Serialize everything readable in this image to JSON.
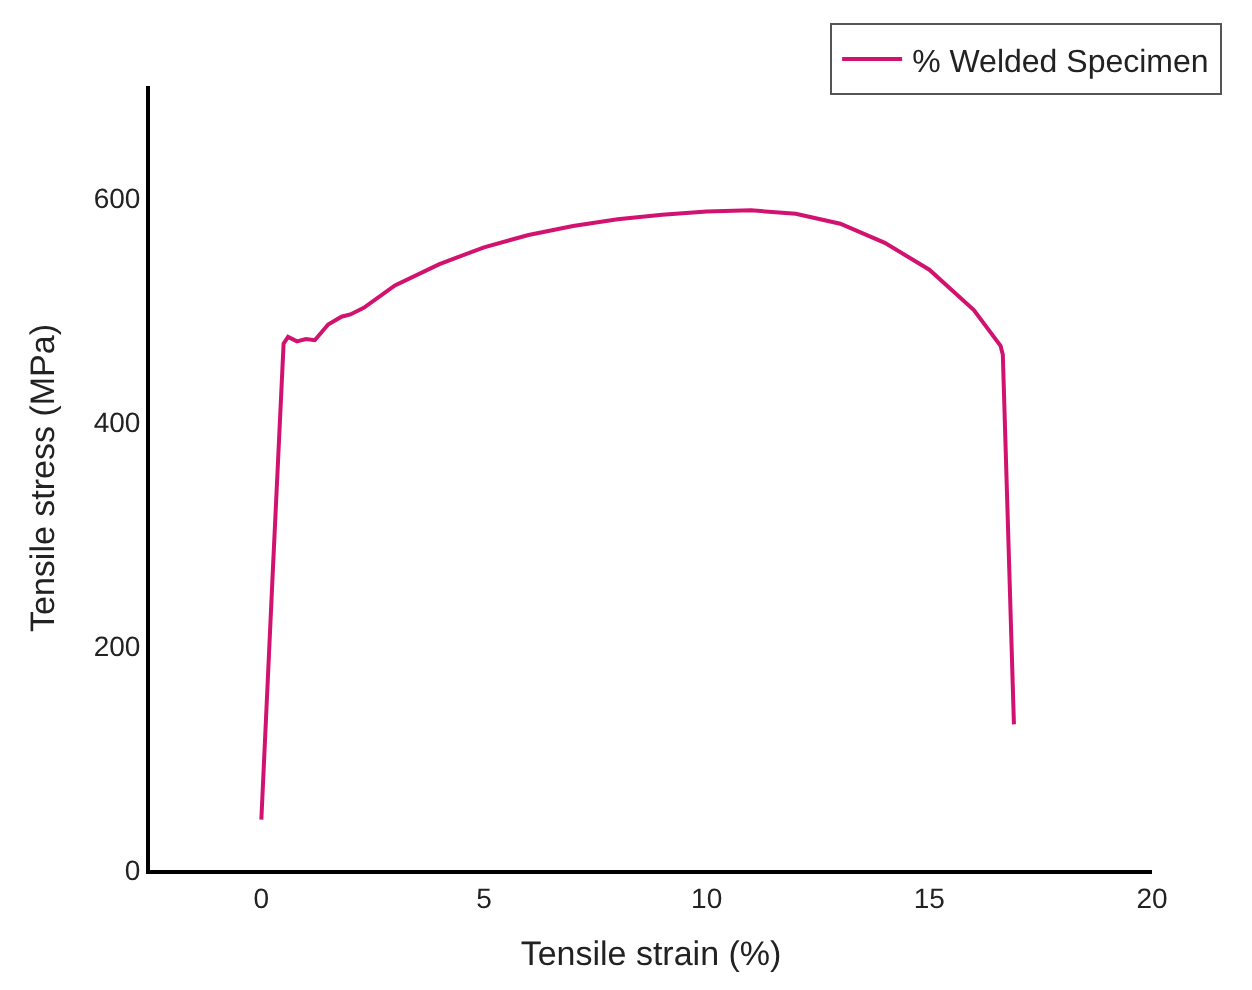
{
  "chart_data": {
    "type": "line",
    "xlabel": "Tensile strain (%)",
    "ylabel": "Tensile stress (MPa)",
    "x": [
      0,
      0.25,
      0.5,
      0.6,
      0.8,
      1.0,
      1.2,
      1.5,
      1.8,
      2.0,
      2.3,
      3,
      4,
      5,
      6,
      7,
      8,
      9,
      10,
      11,
      12,
      13,
      14,
      15,
      16,
      16.6,
      16.65,
      16.9
    ],
    "series": [
      {
        "name": "% Welded Specimen",
        "color": "#d1126e",
        "values": [
          45,
          260,
          470,
          476,
          472,
          474,
          473,
          487,
          494,
          496,
          502,
          522,
          541,
          556,
          567,
          575,
          581,
          585,
          588,
          589,
          586,
          577,
          560,
          536,
          500,
          468,
          460,
          130
        ]
      }
    ],
    "xlim": [
      -2.5,
      20
    ],
    "xticks": [
      0,
      5,
      10,
      15,
      20
    ],
    "ylim": [
      0,
      700
    ],
    "yticks": [
      0,
      200,
      400,
      600
    ],
    "legend": "top right",
    "marker": "none",
    "line_style": "solid"
  }
}
